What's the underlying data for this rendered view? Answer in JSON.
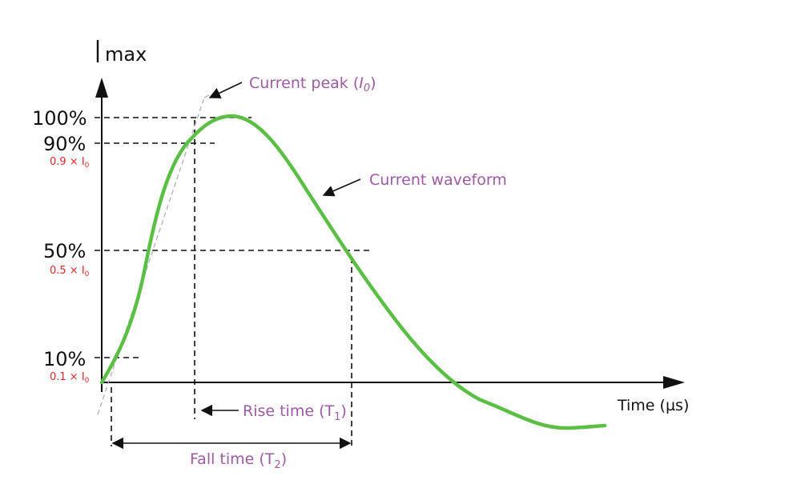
{
  "diagram": {
    "y_axis_title": "max",
    "x_axis_title": "Time (µs)",
    "levels": [
      {
        "label": "100%",
        "fraction": 1.0,
        "sub": ""
      },
      {
        "label": "90%",
        "fraction": 0.9,
        "sub": "0.9 × I",
        "sub_index": "0"
      },
      {
        "label": "50%",
        "fraction": 0.5,
        "sub": "0.5 × I",
        "sub_index": "0"
      },
      {
        "label": "10%",
        "fraction": 0.1,
        "sub": "0.1 × I",
        "sub_index": "0"
      }
    ],
    "annotations": {
      "current_peak": {
        "text": "Current peak (",
        "symbol": "I",
        "index": "0",
        "close": ")"
      },
      "current_waveform": {
        "text": "Current waveform"
      },
      "rise_time": {
        "text": "Rise time (T",
        "index": "1",
        "close": ")"
      },
      "fall_time": {
        "text": "Fall time (T",
        "index": "2",
        "close": ")"
      }
    },
    "colors": {
      "waveform": "#5bbf45",
      "annotation_text": "#9c5aa3",
      "sub_labels": "#e0262b",
      "tangent": "#b0b0b0",
      "axes": "#111111"
    }
  }
}
